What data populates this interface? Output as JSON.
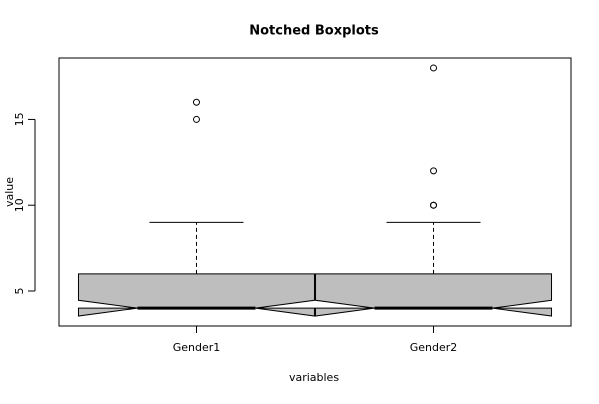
{
  "chart_data": {
    "type": "box",
    "title": "Notched Boxplots",
    "x_label": "variables",
    "y_label": "value",
    "categories": [
      "Gender1",
      "Gender2"
    ],
    "boxes": [
      {
        "whisker_low": 4,
        "q1": 4,
        "median": 4,
        "q3": 6,
        "whisker_high": 9,
        "notch_low": 3.54,
        "notch_high": 4.46,
        "outliers": [
          15,
          16
        ]
      },
      {
        "whisker_low": 4,
        "q1": 4,
        "median": 4,
        "q3": 6,
        "whisker_high": 9,
        "notch_low": 3.54,
        "notch_high": 4.46,
        "outliers": [
          10,
          10,
          12,
          18
        ]
      }
    ],
    "color": "#bebebe",
    "ylim": [
      2.96,
      18.58
    ],
    "yticks": [
      5,
      10,
      15
    ]
  }
}
